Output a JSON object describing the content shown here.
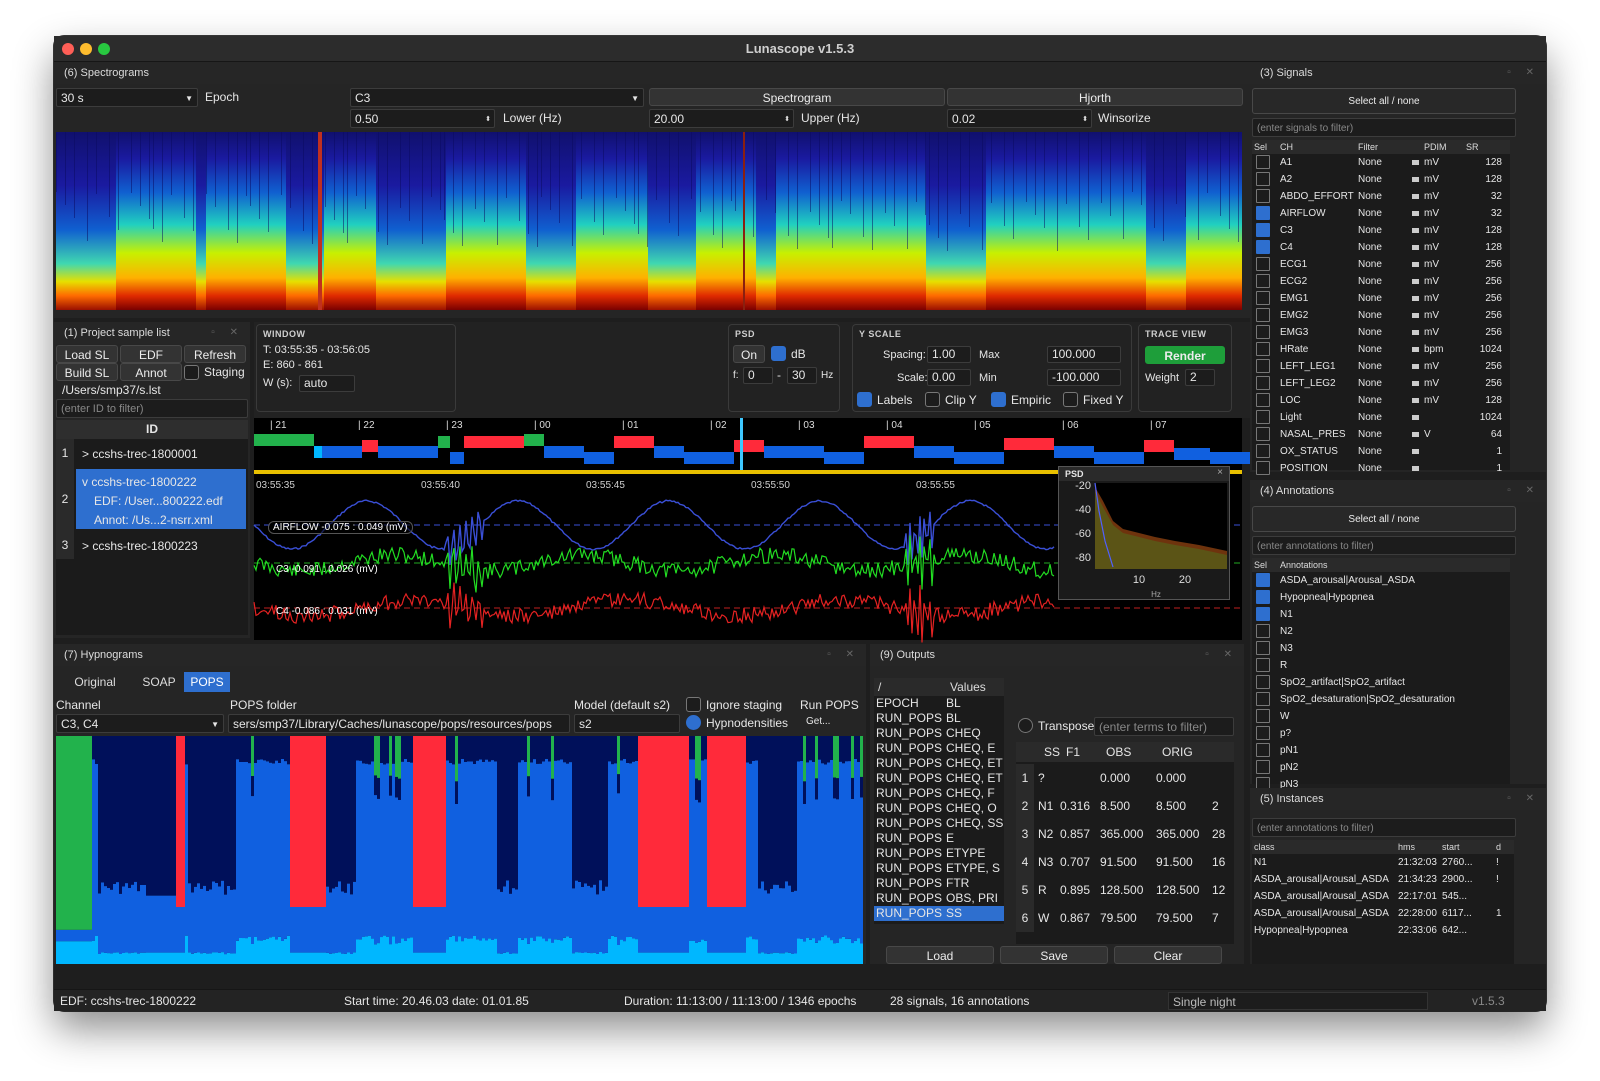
{
  "app": {
    "title": "Lunascope v1.5.3"
  },
  "spectrograms": {
    "title": "(6) Spectrograms",
    "epoch_value": "30 s",
    "epoch_label": "Epoch",
    "channel": "C3",
    "spectrogram_btn": "Spectrogram",
    "hjorth_btn": "Hjorth",
    "lower_value": "0.50",
    "lower_label": "Lower (Hz)",
    "upper_value": "20.00",
    "upper_label": "Upper (Hz)",
    "winsor_value": "0.02",
    "winsor_label": "Winsorize"
  },
  "project": {
    "title": "(1) Project sample list",
    "buttons": [
      "Load SL",
      "EDF",
      "Refresh",
      "Build SL",
      "Annot"
    ],
    "staging_label": "Staging",
    "path": "/Users/smp37/s.lst",
    "filter_placeholder": "(enter ID to filter)",
    "id_header": "ID",
    "rows": [
      {
        "num": "1",
        "lines": [
          "> ccshs-trec-1800001"
        ]
      },
      {
        "num": "2",
        "lines": [
          "v ccshs-trec-1800222",
          "EDF: /User...800222.edf",
          "Annot: /Us...2-nsrr.xml"
        ]
      },
      {
        "num": "3",
        "lines": [
          "> ccshs-trec-1800223"
        ]
      }
    ]
  },
  "window_sect": {
    "title": "WINDOW",
    "t": "T: 03:55:35 - 03:56:05",
    "e": "E: 860 - 861",
    "w_label": "W (s):",
    "w_value": "auto"
  },
  "psd_sect": {
    "title": "PSD",
    "on_label": "On",
    "db_label": "dB",
    "f_label": "f:",
    "f_from": "0",
    "f_to": "30",
    "hz": "Hz"
  },
  "yscale": {
    "title": "Y SCALE",
    "spacing_label": "Spacing:",
    "spacing_value": "1.00",
    "max_label": "Max",
    "max_value": "100.000",
    "scale_label": "Scale:",
    "scale_value": "0.00",
    "min_label": "Min",
    "min_value": "-100.000",
    "checks": [
      "Labels",
      "Clip Y",
      "Empiric",
      "Fixed Y"
    ]
  },
  "trace": {
    "title": "TRACE VIEW",
    "render_label": "Render",
    "weight_label": "Weight",
    "weight_value": "2"
  },
  "viewer": {
    "hour_ticks": [
      "| 21",
      "| 22",
      "| 23",
      "| 00",
      "| 01",
      "| 02",
      "| 03",
      "| 04",
      "| 05",
      "| 06",
      "| 07"
    ],
    "time_ticks": [
      "03:55:35",
      "03:55:40",
      "03:55:45",
      "03:55:50",
      "03:55:55"
    ],
    "traces": [
      {
        "label": "AIRFLOW -0.075 : 0.049 (mV)",
        "color": "#3a4fd6"
      },
      {
        "label": "C3 -0.091 : 0.026 (mV)",
        "color": "#22dd22"
      },
      {
        "label": "C4 -0.086 : 0.031 (mV)",
        "color": "#e52222"
      }
    ],
    "psd": {
      "title": "PSD",
      "close": "×",
      "y_ticks": [
        "-20",
        "-40",
        "-60",
        "-80"
      ],
      "x_ticks": [
        "10",
        "20"
      ],
      "x_label": "Hz"
    }
  },
  "signals": {
    "title": "(3) Signals",
    "select_all": "Select all / none",
    "filter_placeholder": "(enter signals to filter)",
    "headers": [
      "Sel",
      "CH",
      "Filter",
      "PDIM",
      "SR"
    ],
    "rows": [
      {
        "ch": "A1",
        "filter": "None",
        "pdim": "mV",
        "sr": "128",
        "sel": false
      },
      {
        "ch": "A2",
        "filter": "None",
        "pdim": "mV",
        "sr": "128",
        "sel": false
      },
      {
        "ch": "ABDO_EFFORT",
        "filter": "None",
        "pdim": "mV",
        "sr": "32",
        "sel": false
      },
      {
        "ch": "AIRFLOW",
        "filter": "None",
        "pdim": "mV",
        "sr": "32",
        "sel": true
      },
      {
        "ch": "C3",
        "filter": "None",
        "pdim": "mV",
        "sr": "128",
        "sel": true
      },
      {
        "ch": "C4",
        "filter": "None",
        "pdim": "mV",
        "sr": "128",
        "sel": true
      },
      {
        "ch": "ECG1",
        "filter": "None",
        "pdim": "mV",
        "sr": "256",
        "sel": false
      },
      {
        "ch": "ECG2",
        "filter": "None",
        "pdim": "mV",
        "sr": "256",
        "sel": false
      },
      {
        "ch": "EMG1",
        "filter": "None",
        "pdim": "mV",
        "sr": "256",
        "sel": false
      },
      {
        "ch": "EMG2",
        "filter": "None",
        "pdim": "mV",
        "sr": "256",
        "sel": false
      },
      {
        "ch": "EMG3",
        "filter": "None",
        "pdim": "mV",
        "sr": "256",
        "sel": false
      },
      {
        "ch": "HRate",
        "filter": "None",
        "pdim": "bpm",
        "sr": "1024",
        "sel": false
      },
      {
        "ch": "LEFT_LEG1",
        "filter": "None",
        "pdim": "mV",
        "sr": "256",
        "sel": false
      },
      {
        "ch": "LEFT_LEG2",
        "filter": "None",
        "pdim": "mV",
        "sr": "256",
        "sel": false
      },
      {
        "ch": "LOC",
        "filter": "None",
        "pdim": "mV",
        "sr": "128",
        "sel": false
      },
      {
        "ch": "Light",
        "filter": "None",
        "pdim": "",
        "sr": "1024",
        "sel": false
      },
      {
        "ch": "NASAL_PRES",
        "filter": "None",
        "pdim": "V",
        "sr": "64",
        "sel": false
      },
      {
        "ch": "OX_STATUS",
        "filter": "None",
        "pdim": "",
        "sr": "1",
        "sel": false
      },
      {
        "ch": "POSITION",
        "filter": "None",
        "pdim": "",
        "sr": "1",
        "sel": false
      }
    ]
  },
  "annotations": {
    "title": "(4) Annotations",
    "select_all": "Select all / none",
    "filter_placeholder": "(enter annotations to filter)",
    "headers": [
      "Sel",
      "Annotations"
    ],
    "rows": [
      {
        "name": "ASDA_arousal|Arousal_ASDA",
        "sel": true
      },
      {
        "name": "Hypopnea|Hypopnea",
        "sel": true
      },
      {
        "name": "N1",
        "sel": true
      },
      {
        "name": "N2",
        "sel": false
      },
      {
        "name": "N3",
        "sel": false
      },
      {
        "name": "R",
        "sel": false
      },
      {
        "name": "SpO2_artifact|SpO2_artifact",
        "sel": false
      },
      {
        "name": "SpO2_desaturation|SpO2_desaturation",
        "sel": false
      },
      {
        "name": "W",
        "sel": false
      },
      {
        "name": "p?",
        "sel": false
      },
      {
        "name": "pN1",
        "sel": false
      },
      {
        "name": "pN2",
        "sel": false
      },
      {
        "name": "pN3",
        "sel": false
      }
    ]
  },
  "instances": {
    "title": "(5) Instances",
    "filter_placeholder": "(enter annotations to filter)",
    "headers": [
      "class",
      "hms",
      "start",
      "d"
    ],
    "rows": [
      {
        "class": "N1",
        "hms": "21:32:03",
        "start": "2760...",
        "d": "!"
      },
      {
        "class": "ASDA_arousal|Arousal_ASDA",
        "hms": "21:34:23",
        "start": "2900...",
        "d": "!"
      },
      {
        "class": "ASDA_arousal|Arousal_ASDA",
        "hms": "22:17:01",
        "start": "545...",
        "d": ""
      },
      {
        "class": "ASDA_arousal|Arousal_ASDA",
        "hms": "22:28:00",
        "start": "6117...",
        "d": "1"
      },
      {
        "class": "Hypopnea|Hypopnea",
        "hms": "22:33:06",
        "start": "642...",
        "d": ""
      }
    ]
  },
  "hypnograms": {
    "title": "(7) Hypnograms",
    "tabs": [
      "Original",
      "SOAP",
      "POPS"
    ],
    "active_tab": 2,
    "channel_label": "Channel",
    "channel_value": "C3, C4",
    "pops_folder_label": "POPS folder",
    "pops_folder_value": "sers/smp37/Library/Caches/lunascope/pops/resources/pops",
    "model_label": "Model (default s2)",
    "model_value": "s2",
    "ignore_staging": "Ignore staging",
    "hypnodensities": "Hypnodensities",
    "run_pops": "Run POPS",
    "get": "Get..."
  },
  "outputs": {
    "title": "(9) Outputs",
    "tree_header": [
      "/",
      "Values"
    ],
    "tree_rows": [
      [
        "EPOCH",
        "BL"
      ],
      [
        "RUN_POPS",
        "BL"
      ],
      [
        "RUN_POPS",
        "CHEQ"
      ],
      [
        "RUN_POPS",
        "CHEQ, E"
      ],
      [
        "RUN_POPS",
        "CHEQ, ET"
      ],
      [
        "RUN_POPS",
        "CHEQ, ET"
      ],
      [
        "RUN_POPS",
        "CHEQ, F"
      ],
      [
        "RUN_POPS",
        "CHEQ, O"
      ],
      [
        "RUN_POPS",
        "CHEQ, SS"
      ],
      [
        "RUN_POPS",
        "E"
      ],
      [
        "RUN_POPS",
        "ETYPE"
      ],
      [
        "RUN_POPS",
        "ETYPE, S"
      ],
      [
        "RUN_POPS",
        "FTR"
      ],
      [
        "RUN_POPS",
        "OBS, PRI"
      ],
      [
        "RUN_POPS",
        "SS"
      ]
    ],
    "transpose": "Transpose",
    "terms_placeholder": "(enter terms to filter)",
    "table_headers": [
      "SS",
      "F1",
      "OBS",
      "ORIG"
    ],
    "table_rows": [
      {
        "n": "1",
        "ss": "?",
        "f1": "",
        "obs": "0.000",
        "orig": "0.000",
        "extra": ""
      },
      {
        "n": "2",
        "ss": "N1",
        "f1": "0.316",
        "obs": "8.500",
        "orig": "8.500",
        "extra": "2"
      },
      {
        "n": "3",
        "ss": "N2",
        "f1": "0.857",
        "obs": "365.000",
        "orig": "365.000",
        "extra": "28"
      },
      {
        "n": "4",
        "ss": "N3",
        "f1": "0.707",
        "obs": "91.500",
        "orig": "91.500",
        "extra": "16"
      },
      {
        "n": "5",
        "ss": "R",
        "f1": "0.895",
        "obs": "128.500",
        "orig": "128.500",
        "extra": "12"
      },
      {
        "n": "6",
        "ss": "W",
        "f1": "0.867",
        "obs": "79.500",
        "orig": "79.500",
        "extra": "7"
      }
    ],
    "load": "Load",
    "save": "Save",
    "clear": "Clear"
  },
  "status": {
    "edf": "EDF: ccshs-trec-1800222",
    "start": "Start time: 20.46.03 date: 01.01.85",
    "duration": "Duration: 11:13:00 / 11:13:00 / 1346 epochs",
    "counts": "28 signals, 16 annotations",
    "mode": "Single night",
    "version": "v1.5.3"
  },
  "colors": {
    "wake": "#22b24c",
    "n1": "#00b7ff",
    "n2": "#1060e0",
    "n3": "#00105a",
    "rem": "#ff2a3a",
    "accent": "#2e6fcf",
    "render": "#1e9e3a"
  }
}
